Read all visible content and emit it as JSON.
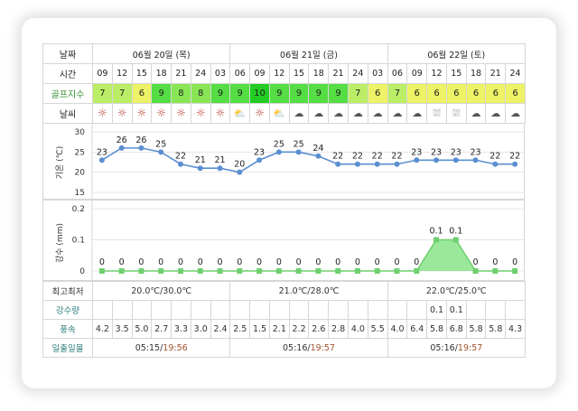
{
  "labels": {
    "date": "날짜",
    "time": "시간",
    "golf_index": "골프지수",
    "weather": "날씨",
    "temp_axis": "기온 (℃)",
    "rain_axis": "강수 (mm)",
    "minmax": "최고최저",
    "rainfall": "강수량",
    "wind": "풍속",
    "sun": "일출일몰"
  },
  "days": [
    {
      "label": "06월 20일 (목)",
      "span": 7,
      "minmax": "20.0℃/30.0℃",
      "sunrise": "05:15",
      "sunset": "19:56"
    },
    {
      "label": "06월 21일 (금)",
      "span": 8,
      "minmax": "21.0℃/28.0℃",
      "sunrise": "05:16",
      "sunset": "19:57"
    },
    {
      "label": "06월 22일 (토)",
      "span": 7,
      "minmax": "22.0℃/25.0℃",
      "sunrise": "05:16",
      "sunset": "19:57"
    }
  ],
  "hours": [
    "09",
    "12",
    "15",
    "18",
    "21",
    "24",
    "03",
    "06",
    "09",
    "12",
    "15",
    "18",
    "21",
    "24",
    "03",
    "06",
    "09",
    "12",
    "15",
    "18",
    "21",
    "24"
  ],
  "golf_index": [
    7,
    7,
    6,
    9,
    8,
    8,
    9,
    9,
    10,
    9,
    9,
    9,
    9,
    7,
    6,
    7,
    6,
    6,
    6,
    6,
    6,
    6
  ],
  "weather_icons": [
    "sun-icon",
    "sun-icon",
    "sun-icon",
    "sun-icon",
    "sun-icon",
    "sun-icon",
    "sun-icon",
    "sun-cloud-icon",
    "sun-icon",
    "sun-cloud-icon",
    "cloud-icon",
    "cloud-icon",
    "cloud-icon",
    "cloud-icon",
    "cloud-icon",
    "cloud-icon",
    "cloud-icon",
    "rain-cloud-icon",
    "rain-cloud-icon",
    "cloud-icon",
    "cloud-icon",
    "cloud-icon"
  ],
  "wind": [
    "4.2",
    "3.5",
    "5.0",
    "2.7",
    "3.3",
    "3.0",
    "2.4",
    "2.5",
    "1.5",
    "2.1",
    "2.2",
    "2.6",
    "2.8",
    "4.0",
    "5.5",
    "4.0",
    "6.4",
    "5.8",
    "6.8",
    "5.8",
    "5.8",
    "4.3"
  ],
  "rainfall": [
    "",
    "",
    "",
    "",
    "",
    "",
    "",
    "",
    "",
    "",
    "",
    "",
    "",
    "",
    "",
    "",
    "",
    "0.1",
    "0.1",
    "",
    "",
    ""
  ],
  "colors": {
    "golf_10": "#22cc22",
    "golf_9": "#55dd44",
    "golf_8": "#88e655",
    "golf_7": "#bbee66",
    "golf_6": "#eef266",
    "line": "#5b8fd0",
    "rain_fill": "#9be89b",
    "rain_line": "#6fd06f",
    "sun_icon": "#b5382a"
  },
  "chart_data": [
    {
      "type": "line",
      "ylabel": "기온 (℃)",
      "x": [
        "09",
        "12",
        "15",
        "18",
        "21",
        "24",
        "03",
        "06",
        "09",
        "12",
        "15",
        "18",
        "21",
        "24",
        "03",
        "06",
        "09",
        "12",
        "15",
        "18",
        "21",
        "24"
      ],
      "values": [
        23,
        26,
        26,
        25,
        22,
        21,
        21,
        20,
        23,
        25,
        25,
        24,
        22,
        22,
        22,
        22,
        23,
        23,
        23,
        23,
        22,
        22
      ],
      "value_labels": [
        "23",
        "26",
        "26",
        "25",
        "22",
        "21",
        "21",
        "20",
        "23",
        "25",
        "25",
        "24",
        "22",
        "22",
        "22",
        "22",
        "23",
        "23",
        "23",
        "23",
        "22",
        "22"
      ],
      "yticks": [
        "30",
        "25",
        "20",
        "15"
      ],
      "ylim": [
        15,
        30
      ]
    },
    {
      "type": "area",
      "ylabel": "강수 (mm)",
      "x": [
        "09",
        "12",
        "15",
        "18",
        "21",
        "24",
        "03",
        "06",
        "09",
        "12",
        "15",
        "18",
        "21",
        "24",
        "03",
        "06",
        "09",
        "12",
        "15",
        "18",
        "21",
        "24"
      ],
      "values": [
        0,
        0,
        0,
        0,
        0,
        0,
        0,
        0,
        0,
        0,
        0,
        0,
        0,
        0,
        0,
        0,
        0,
        0.1,
        0.1,
        0,
        0,
        0
      ],
      "value_labels": [
        "0",
        "0",
        "0",
        "0",
        "0",
        "0",
        "0",
        "0",
        "0",
        "0",
        "0",
        "0",
        "0",
        "0",
        "0",
        "0",
        "0",
        "0.1",
        "0.1",
        "0",
        "0",
        "0"
      ],
      "yticks": [
        "0.2",
        "0.1",
        "0"
      ],
      "ylim": [
        0,
        0.2
      ]
    }
  ]
}
